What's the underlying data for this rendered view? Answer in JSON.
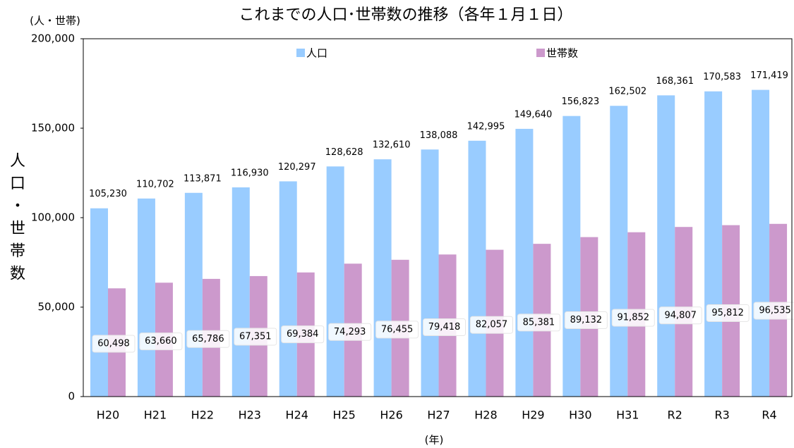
{
  "chart_data": {
    "type": "bar",
    "title": "これまでの人口･世帯数の推移（各年１月１日）",
    "unit_label": "(人・世帯)",
    "y_label": "人口・世帯数",
    "x_label": "(年)",
    "categories": [
      "H20",
      "H21",
      "H22",
      "H23",
      "H24",
      "H25",
      "H26",
      "H27",
      "H28",
      "H29",
      "H30",
      "H31",
      "R2",
      "R3",
      "R4"
    ],
    "series": [
      {
        "name": "人口",
        "color": "#99ccff",
        "values": [
          105230,
          110702,
          113871,
          116930,
          120297,
          128628,
          132610,
          138088,
          142995,
          149640,
          156823,
          162502,
          168361,
          170583,
          171419
        ],
        "value_labels": [
          "105,230",
          "110,702",
          "113,871",
          "116,930",
          "120,297",
          "128,628",
          "132,610",
          "138,088",
          "142,995",
          "149,640",
          "156,823",
          "162,502",
          "168,361",
          "170,583",
          "171,419"
        ]
      },
      {
        "name": "世帯数",
        "color": "#cc99cc",
        "values": [
          60498,
          63660,
          65786,
          67351,
          69384,
          74293,
          76455,
          79418,
          82057,
          85381,
          89132,
          91852,
          94807,
          95812,
          96535
        ],
        "value_labels": [
          "60,498",
          "63,660",
          "65,786",
          "67,351",
          "69,384",
          "74,293",
          "76,455",
          "79,418",
          "82,057",
          "85,381",
          "89,132",
          "91,852",
          "94,807",
          "95,812",
          "96,535"
        ]
      }
    ],
    "ylim": [
      0,
      200000
    ],
    "yticks": [
      0,
      {
        "value": 50000,
        "label": "50,000"
      },
      {
        "value": 100000,
        "label": "100,000"
      },
      {
        "value": 150000,
        "label": "150,000"
      },
      {
        "value": 200000,
        "label": "200,000"
      }
    ],
    "grid": false,
    "legend": "top"
  }
}
